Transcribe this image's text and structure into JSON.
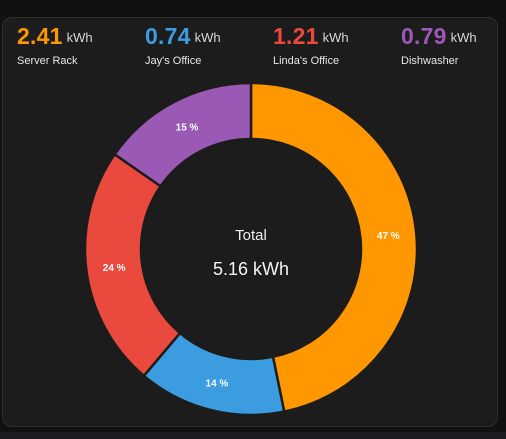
{
  "stats": [
    {
      "value": "2.41",
      "unit": "kWh",
      "label": "Server Rack",
      "color": "#ff9800"
    },
    {
      "value": "0.74",
      "unit": "kWh",
      "label": "Jay's Office",
      "color": "#3b9de0"
    },
    {
      "value": "1.21",
      "unit": "kWh",
      "label": "Linda's Office",
      "color": "#ea4a3d"
    },
    {
      "value": "0.79",
      "unit": "kWh",
      "label": "Dishwasher",
      "color": "#9b59b6"
    }
  ],
  "chart_data": {
    "type": "pie",
    "variant": "donut",
    "categories": [
      "Server Rack",
      "Jay's Office",
      "Linda's Office",
      "Dishwasher"
    ],
    "values": [
      2.41,
      0.74,
      1.21,
      0.79
    ],
    "percent_labels": [
      "47 %",
      "14 %",
      "24 %",
      "15 %"
    ],
    "colors": [
      "#ff9800",
      "#3b9de0",
      "#ea4a3d",
      "#9b59b6"
    ],
    "center_title": "Total",
    "center_value": "5.16 kWh"
  }
}
